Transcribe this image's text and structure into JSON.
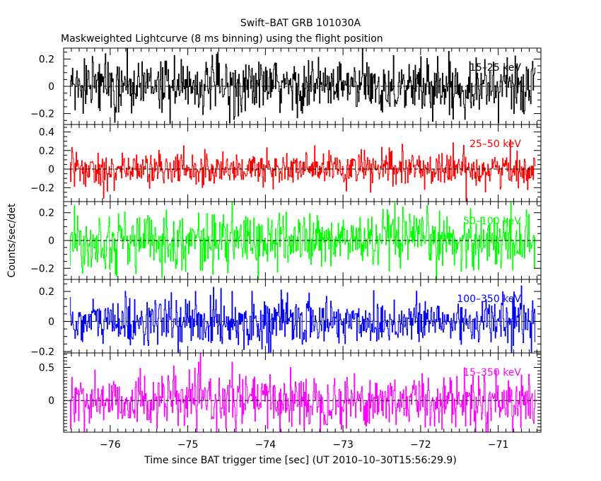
{
  "title": "Swift–BAT GRB 101030A",
  "subtitle": "Maskweighted Lightcurve (8 ms binning) using the flight position",
  "xlabel": "Time since BAT trigger time [sec] (UT 2010–10–30T15:56:29.9)",
  "ylabel": "Counts/sec/det",
  "chart_data": {
    "type": "line",
    "xlim": [
      -76.6,
      -70.45
    ],
    "x_range_data": [
      -76.52,
      -70.52
    ],
    "bin_width": 0.008,
    "x_ticks": [
      -76,
      -75,
      -74,
      -73,
      -72,
      -71
    ],
    "x_tick_labels": [
      "−76",
      "−75",
      "−74",
      "−73",
      "−72",
      "−71"
    ],
    "panels": [
      {
        "name": "15–25 keV",
        "color": "#000000",
        "ylim": [
          -0.28,
          0.28
        ],
        "y_ticks": [
          0.2,
          0,
          -0.2
        ],
        "y_tick_labels": [
          "0.2",
          "0",
          "−0.2"
        ],
        "amplitude": 0.1
      },
      {
        "name": "25–50 keV",
        "color": "#ff0000",
        "ylim": [
          -0.35,
          0.48
        ],
        "y_ticks": [
          0.4,
          0.2,
          0,
          -0.2
        ],
        "y_tick_labels": [
          "0.4",
          "0.2",
          "0",
          "−0.2"
        ],
        "amplitude": 0.095
      },
      {
        "name": "50–100 keV",
        "color": "#00ff00",
        "ylim": [
          -0.28,
          0.28
        ],
        "y_ticks": [
          0.2,
          0,
          -0.2
        ],
        "y_tick_labels": [
          "0.2",
          "0",
          "−0.2"
        ],
        "amplitude": 0.1
      },
      {
        "name": "100–350 keV",
        "color": "#0000ff",
        "ylim": [
          -0.21,
          0.28
        ],
        "y_ticks": [
          0.2,
          0,
          -0.2
        ],
        "y_tick_labels": [
          "0.2",
          "0",
          "−0.2"
        ],
        "amplitude": 0.08
      },
      {
        "name": "15–350 keV",
        "color": "#ff00ff",
        "ylim": [
          -0.48,
          0.72
        ],
        "y_ticks": [
          0.5,
          0
        ],
        "y_tick_labels": [
          "0.5",
          "0"
        ],
        "amplitude": 0.2
      }
    ]
  }
}
